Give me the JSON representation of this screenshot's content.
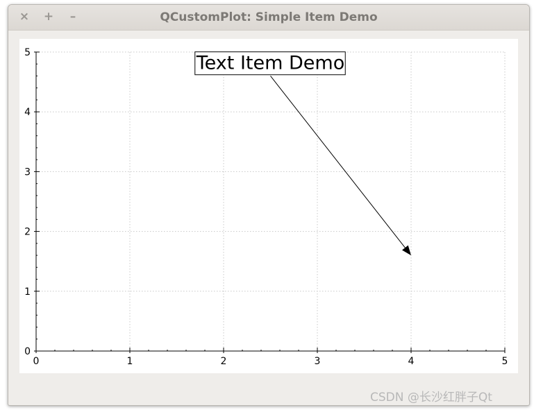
{
  "window": {
    "title": "QCustomPlot: Simple Item Demo",
    "buttons": {
      "close": "×",
      "maximize": "+",
      "minimize": "–"
    }
  },
  "chart_data": {
    "type": "line",
    "x": [],
    "series": [],
    "title": "",
    "xlabel": "",
    "ylabel": "",
    "xlim": [
      0,
      5
    ],
    "ylim": [
      0,
      5
    ],
    "xticks": [
      "0",
      "1",
      "2",
      "3",
      "4",
      "5"
    ],
    "yticks": [
      "0",
      "1",
      "2",
      "3",
      "4",
      "5"
    ],
    "grid": true,
    "text_item": {
      "text": "Text Item Demo",
      "x": 2.5,
      "y": 4.8
    },
    "arrow": {
      "from": [
        2.5,
        4.6
      ],
      "to": [
        4.0,
        1.6
      ]
    }
  },
  "watermark": "CSDN @长沙红胖子Qt",
  "colors": {
    "grid": "#c8c8c8",
    "axis": "#000000",
    "watermark": "#b8b8b8"
  }
}
